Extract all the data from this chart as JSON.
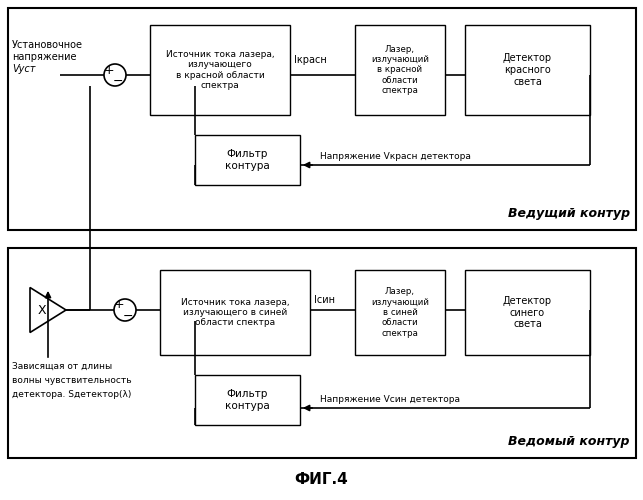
{
  "fig_title": "ФИГ.4",
  "bg_color": "#ffffff",
  "box_color": "#ffffff",
  "box_edge_color": "#000000",
  "line_color": "#000000",
  "text_color": "#000000",
  "top_loop_label": "Ведущий контур",
  "bottom_loop_label": "Ведомый контур",
  "top_box1_text": "Источник тока лазера,\nизлучающего\nв красной области\nспектра",
  "top_box2_text": "Лазер,\nизлучающий\nв красной\nобласти\nспектра",
  "top_box3_text": "Детектор\nкрасного\nсвета",
  "top_filter_text": "Фильтр\nконтура",
  "top_current_label": "Iкрасн",
  "top_voltage_label": "Напряжение Vкрасн детектора",
  "top_setpoint_line1": "Установочное",
  "top_setpoint_line2": "напряжение",
  "top_setpoint_line3": "Vуст",
  "bottom_box1_text": "Источник тока лазера,\nизлучающего в синей\nобласти спектра",
  "bottom_box2_text": "Лазер,\nизлучающий\nв синей\nобласти\nспектра",
  "bottom_box3_text": "Детектор\nсинего\nсвета",
  "bottom_filter_text": "Фильтр\nконтура",
  "bottom_current_label": "Iсин",
  "bottom_voltage_label": "Напряжение Vсин детектора",
  "bottom_sensitivity_line1": "Зависящая от длины",
  "bottom_sensitivity_line2": "волны чувствительность",
  "bottom_sensitivity_line3": "детектора. Sдетектор(λ)",
  "multiplier_label": "X"
}
